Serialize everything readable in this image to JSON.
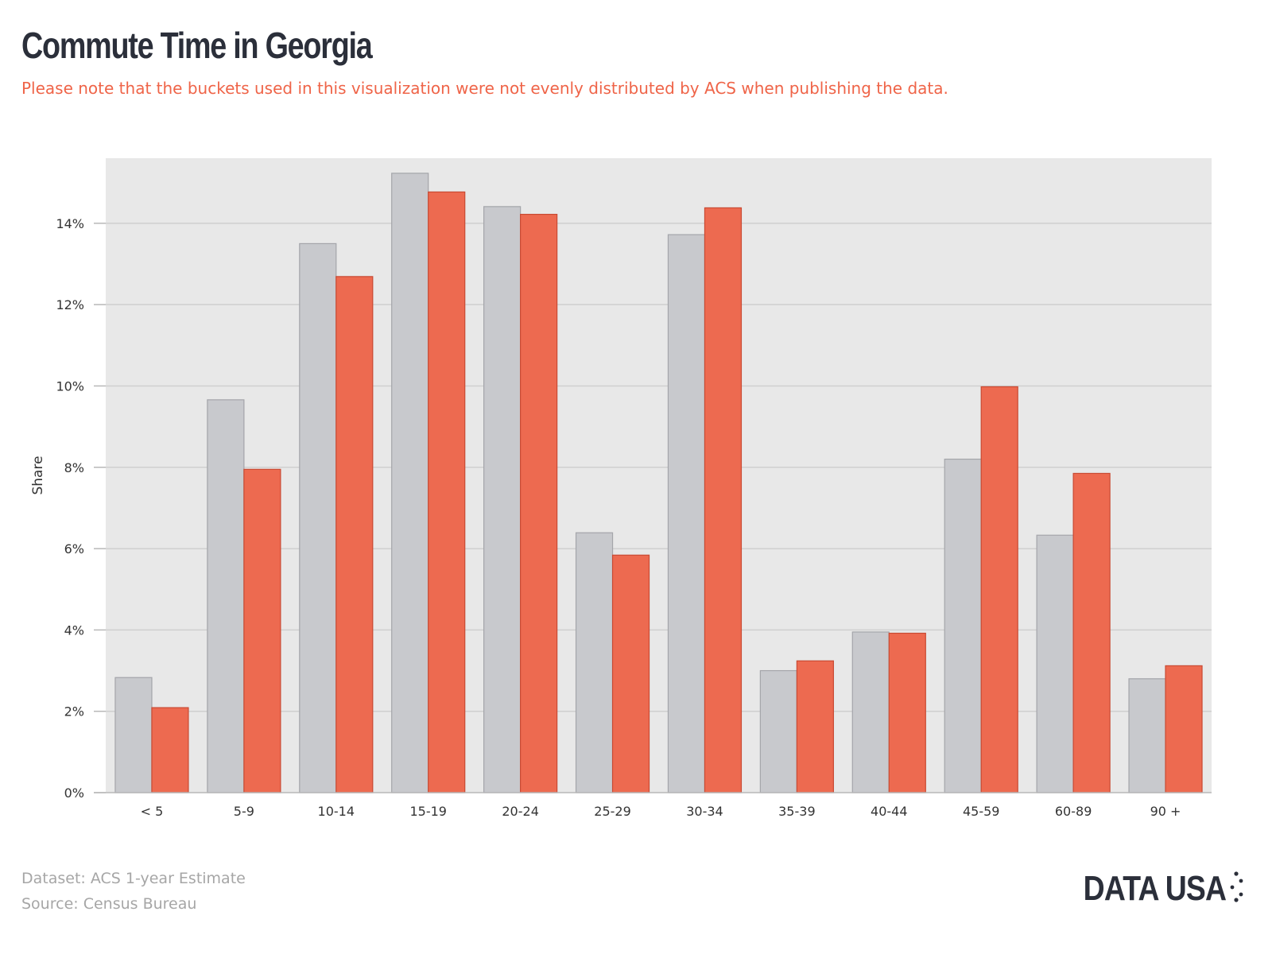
{
  "header": {
    "title": "Commute Time in Georgia",
    "subtitle": "Please note that the buckets used in this visualization were not evenly distributed by ACS when publishing the data."
  },
  "footer": {
    "dataset": "Dataset: ACS 1-year Estimate",
    "source": "Source: Census Bureau",
    "logo": "DATA USA"
  },
  "colors": {
    "series_1": "#c8c9cd",
    "series_2": "#ed6a50",
    "background": "#e8e8e8",
    "grid": "#cfcfcf",
    "text": "#2b2f3a"
  },
  "chart_data": {
    "type": "bar",
    "title": "Commute Time in Georgia",
    "xlabel": "",
    "ylabel": "Share",
    "ylim": [
      0,
      15.6
    ],
    "yticks": [
      0,
      2,
      4,
      6,
      8,
      10,
      12,
      14
    ],
    "ytick_labels": [
      "0%",
      "2%",
      "4%",
      "6%",
      "8%",
      "10%",
      "12%",
      "14%"
    ],
    "grid": true,
    "categories": [
      "< 5",
      "5-9",
      "10-14",
      "15-19",
      "20-24",
      "25-29",
      "30-34",
      "35-39",
      "40-44",
      "45-59",
      "60-89",
      "90 +"
    ],
    "series": [
      {
        "values": [
          2.83,
          9.66,
          13.5,
          15.23,
          14.41,
          6.39,
          13.72,
          3.0,
          3.95,
          8.2,
          6.33,
          2.8
        ]
      },
      {
        "values": [
          2.09,
          7.95,
          12.69,
          14.77,
          14.22,
          5.84,
          14.38,
          3.24,
          3.92,
          9.98,
          7.85,
          3.12
        ]
      }
    ]
  }
}
